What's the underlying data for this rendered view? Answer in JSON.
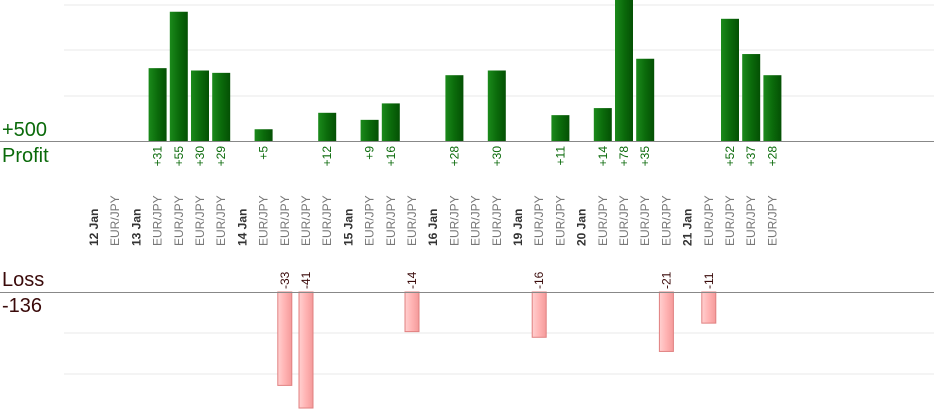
{
  "labels": {
    "profit_total": "+500",
    "profit_word": "Profit",
    "loss_word": "Loss",
    "loss_total": "-136"
  },
  "colors": {
    "profit_bar": "#0b6b0b",
    "profit_text": "#0a6a0a",
    "loss_bar": "#ffb3b3",
    "loss_bar_edge": "#e08080",
    "loss_text": "#3a0a0a",
    "grid": "#e8e8e8",
    "baseline": "#888888",
    "date_text": "#333333",
    "pair_text": "#777777"
  },
  "chart_data": {
    "type": "bar",
    "slots": [
      {
        "kind": "date",
        "label": "12 Jan"
      },
      {
        "kind": "trade",
        "pair": "EUR/JPY",
        "value": 0
      },
      {
        "kind": "date",
        "label": "13 Jan"
      },
      {
        "kind": "trade",
        "pair": "EUR/JPY",
        "value": 31,
        "label": "+31"
      },
      {
        "kind": "trade",
        "pair": "EUR/JPY",
        "value": 55,
        "label": "+55"
      },
      {
        "kind": "trade",
        "pair": "EUR/JPY",
        "value": 30,
        "label": "+30"
      },
      {
        "kind": "trade",
        "pair": "EUR/JPY",
        "value": 29,
        "label": "+29"
      },
      {
        "kind": "date",
        "label": "14 Jan"
      },
      {
        "kind": "trade",
        "pair": "EUR/JPY",
        "value": 5,
        "label": "+5"
      },
      {
        "kind": "trade",
        "pair": "EUR/JPY",
        "value": -33,
        "label": "-33"
      },
      {
        "kind": "trade",
        "pair": "EUR/JPY",
        "value": -41,
        "label": "-41"
      },
      {
        "kind": "trade",
        "pair": "EUR/JPY",
        "value": 12,
        "label": "+12"
      },
      {
        "kind": "date",
        "label": "15 Jan"
      },
      {
        "kind": "trade",
        "pair": "EUR/JPY",
        "value": 9,
        "label": "+9"
      },
      {
        "kind": "trade",
        "pair": "EUR/JPY",
        "value": 16,
        "label": "+16"
      },
      {
        "kind": "trade",
        "pair": "EUR/JPY",
        "value": -14,
        "label": "-14"
      },
      {
        "kind": "date",
        "label": "16 Jan"
      },
      {
        "kind": "trade",
        "pair": "EUR/JPY",
        "value": 28,
        "label": "+28"
      },
      {
        "kind": "trade",
        "pair": "EUR/JPY",
        "value": 0
      },
      {
        "kind": "trade",
        "pair": "EUR/JPY",
        "value": 30,
        "label": "+30"
      },
      {
        "kind": "date",
        "label": "19 Jan"
      },
      {
        "kind": "trade",
        "pair": "EUR/JPY",
        "value": -16,
        "label": "-16"
      },
      {
        "kind": "trade",
        "pair": "EUR/JPY",
        "value": 11,
        "label": "+11"
      },
      {
        "kind": "date",
        "label": "20 Jan"
      },
      {
        "kind": "trade",
        "pair": "EUR/JPY",
        "value": 14,
        "label": "+14"
      },
      {
        "kind": "trade",
        "pair": "EUR/JPY",
        "value": 78,
        "label": "+78"
      },
      {
        "kind": "trade",
        "pair": "EUR/JPY",
        "value": 35,
        "label": "+35"
      },
      {
        "kind": "trade",
        "pair": "EUR/JPY",
        "value": -21,
        "label": "-21"
      },
      {
        "kind": "date",
        "label": "21 Jan"
      },
      {
        "kind": "trade",
        "pair": "EUR/JPY",
        "value": -11,
        "label": "-11"
      },
      {
        "kind": "trade",
        "pair": "EUR/JPY",
        "value": 52,
        "label": "+52"
      },
      {
        "kind": "trade",
        "pair": "EUR/JPY",
        "value": 37,
        "label": "+37"
      },
      {
        "kind": "trade",
        "pair": "EUR/JPY",
        "value": 28,
        "label": "+28"
      }
    ]
  }
}
